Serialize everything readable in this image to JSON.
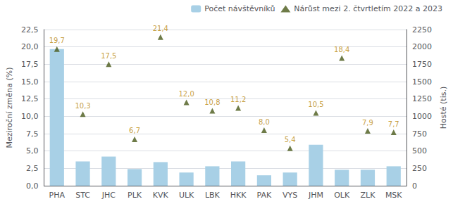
{
  "chart_data": {
    "type": "bar",
    "categories": [
      "PHA",
      "STC",
      "JHC",
      "PLK",
      "KVK",
      "ULK",
      "LBK",
      "HKK",
      "PAK",
      "VYS",
      "JHM",
      "OLK",
      "ZLK",
      "MSK"
    ],
    "series": [
      {
        "name": "Počet návštěvníků",
        "type": "bar",
        "color": "#a8d0e6",
        "values": [
          19.7,
          3.5,
          4.2,
          2.4,
          3.4,
          1.9,
          2.8,
          3.5,
          1.5,
          1.9,
          5.9,
          2.3,
          2.3,
          2.8
        ]
      },
      {
        "name": "Nárůst mezi 2. čtvrtletím 2022 a 2023",
        "type": "scatter",
        "marker": "triangle",
        "color": "#4a5a1a",
        "values": [
          19.7,
          10.3,
          17.5,
          6.7,
          21.4,
          12.0,
          10.8,
          11.2,
          8.0,
          5.4,
          10.5,
          18.4,
          7.9,
          7.7
        ],
        "data_labels": true,
        "value_labels": [
          "19,7",
          "10,3",
          "17,5",
          "6,7",
          "21,4",
          "12,0",
          "10,8",
          "11,2",
          "8,0",
          "5,4",
          "10,5",
          "18,4",
          "7,9",
          "7,7"
        ]
      }
    ],
    "ylabel": "Meziroční změna (%)",
    "y2label": "Hosté (tis.)",
    "ylim": [
      0,
      22.5
    ],
    "yticks": [
      {
        "value": 0.0,
        "label": "0,0"
      },
      {
        "value": 2.5,
        "label": "2,5"
      },
      {
        "value": 5.0,
        "label": "5,0"
      },
      {
        "value": 7.5,
        "label": "7,5"
      },
      {
        "value": 10.0,
        "label": "10,0"
      },
      {
        "value": 12.5,
        "label": "12,5"
      },
      {
        "value": 15.0,
        "label": "15,0"
      },
      {
        "value": 17.5,
        "label": "17,5"
      },
      {
        "value": 20.0,
        "label": "20,0"
      },
      {
        "value": 22.5,
        "label": "22,5"
      }
    ],
    "y2lim": [
      0,
      2250
    ],
    "y2ticks": [
      0,
      250,
      500,
      750,
      1000,
      1250,
      1500,
      1750,
      2000,
      2250
    ],
    "grid": true,
    "legend": "upper right"
  }
}
